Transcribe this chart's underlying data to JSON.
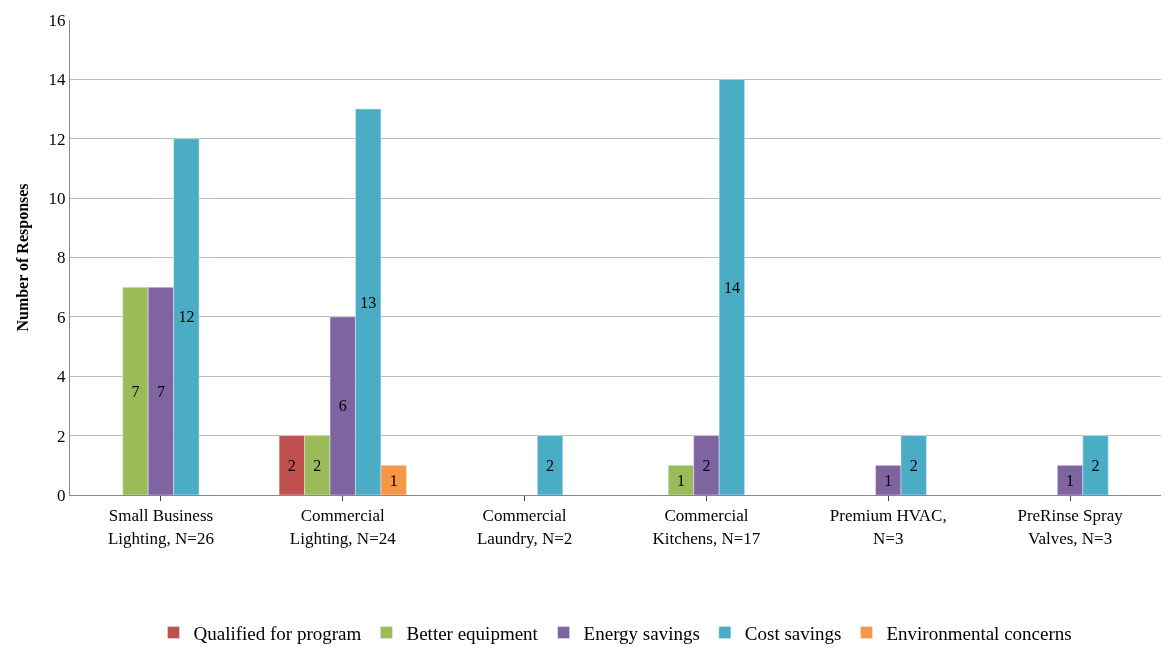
{
  "chart_data": {
    "type": "bar",
    "ylabel": "Number of Responses",
    "categories": [
      "Small Business Lighting, N=26",
      "Commercial Lighting, N=24",
      "Commercial Laundry, N=2",
      "Commercial Kitchens, N=17",
      "Premium HVAC, N=3",
      "PreRinse Spray Valves, N=3"
    ],
    "series": [
      {
        "name": "Qualified for program",
        "color": "#c0504d",
        "values": [
          null,
          2,
          null,
          null,
          null,
          null
        ]
      },
      {
        "name": "Better equipment",
        "color": "#9bbb59",
        "values": [
          7,
          2,
          null,
          1,
          null,
          null
        ]
      },
      {
        "name": "Energy savings",
        "color": "#8064a2",
        "values": [
          7,
          6,
          null,
          2,
          1,
          1
        ]
      },
      {
        "name": "Cost savings",
        "color": "#4bacc6",
        "values": [
          12,
          13,
          2,
          14,
          2,
          2
        ]
      },
      {
        "name": "Environmental concerns",
        "color": "#f79646",
        "values": [
          null,
          1,
          null,
          null,
          null,
          null
        ]
      }
    ],
    "ylim": [
      0,
      16
    ],
    "yticks": [
      0,
      2,
      4,
      6,
      8,
      10,
      12,
      14,
      16
    ],
    "grid": "y",
    "legend": "bottom",
    "data_labels": true
  }
}
